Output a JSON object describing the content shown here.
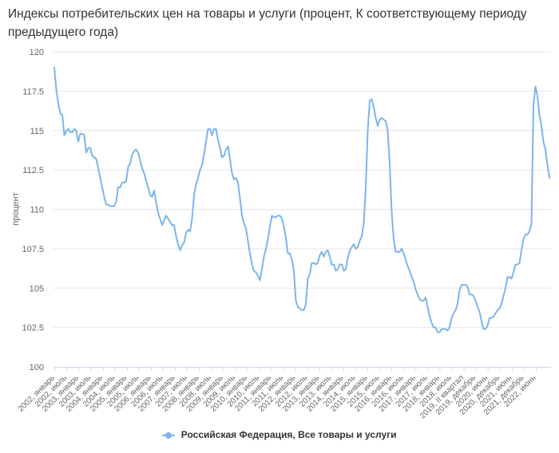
{
  "title": "Индексы потребительских цен на товары и услуги (процент, К соответствующему периоду предыдущего года)",
  "chart_data": {
    "type": "line",
    "title": "Индексы потребительских цен на товары и услуги (процент, К соответствующему периоду предыдущего года)",
    "ylabel": "процент",
    "xlabel": "",
    "ylim": [
      100,
      120
    ],
    "yticks": [
      100,
      102.5,
      105,
      107.5,
      110,
      112.5,
      115,
      117.5,
      120
    ],
    "ytick_labels": [
      "100",
      "102.5",
      "105",
      "107.5",
      "110",
      "112.5",
      "115",
      "117.5",
      "120"
    ],
    "xtick_labels": [
      "2002, январь",
      "2002, июль",
      "2003, январь",
      "2003, июль",
      "2004, январь",
      "2004, июль",
      "2005, январь",
      "2005, июль",
      "2006, январь",
      "2006, июль",
      "2007, январь",
      "2007, июль",
      "2008, январь",
      "2008, июль",
      "2009, январь",
      "2009, июль",
      "2010, январь",
      "2010, июль",
      "2011, январь",
      "2011, июль",
      "2012, январь",
      "2012, июль",
      "2013, январь",
      "2013, июль",
      "2014, январь",
      "2014, июль",
      "2015, январь",
      "2015, июль",
      "2016, январь",
      "2016, июль",
      "2017, январь",
      "2017, июль",
      "2018, январь",
      "2018, июль",
      "2019, II квартал",
      "2019, декабрь",
      "2020, июнь",
      "2020, декабрь",
      "2021, июнь",
      "2021, декабрь",
      "2022, июнь"
    ],
    "grid": true,
    "legend_position": "bottom",
    "color": "#7cb5ec",
    "series": [
      {
        "name": "Российская Федерация, Все товары и услуги",
        "values": [
          119.0,
          117.6,
          116.7,
          116.1,
          116.0,
          114.7,
          115.0,
          115.1,
          114.9,
          114.9,
          115.1,
          115.0,
          114.3,
          114.8,
          114.8,
          114.7,
          113.6,
          113.9,
          113.9,
          113.4,
          113.3,
          113.2,
          112.6,
          112.0,
          111.4,
          110.8,
          110.3,
          110.3,
          110.2,
          110.2,
          110.2,
          110.5,
          111.4,
          111.4,
          111.7,
          111.7,
          111.8,
          112.7,
          112.9,
          113.5,
          113.7,
          113.8,
          113.6,
          113.1,
          112.6,
          112.3,
          111.8,
          111.4,
          110.9,
          110.8,
          111.2,
          110.4,
          109.8,
          109.4,
          109.0,
          109.3,
          109.6,
          109.4,
          109.2,
          109.0,
          109.0,
          108.3,
          107.8,
          107.4,
          107.7,
          107.9,
          108.5,
          108.7,
          108.6,
          109.4,
          110.9,
          111.6,
          112.0,
          112.5,
          112.8,
          113.5,
          114.3,
          115.1,
          115.1,
          114.7,
          115.1,
          115.1,
          114.4,
          113.9,
          113.3,
          113.4,
          113.8,
          114.0,
          113.2,
          112.3,
          111.9,
          112.0,
          111.7,
          110.7,
          109.6,
          109.1,
          108.8,
          108.0,
          107.2,
          106.5,
          106.1,
          106.0,
          105.8,
          105.5,
          106.2,
          107.0,
          107.5,
          108.1,
          108.9,
          109.6,
          109.5,
          109.5,
          109.6,
          109.6,
          109.4,
          108.9,
          108.2,
          107.2,
          107.2,
          106.8,
          106.1,
          104.2,
          103.8,
          103.7,
          103.6,
          103.6,
          104.0,
          105.6,
          105.9,
          106.6,
          106.6,
          106.5,
          106.6,
          107.1,
          107.3,
          107.0,
          107.3,
          107.4,
          107.0,
          106.5,
          106.5,
          106.1,
          106.2,
          106.5,
          106.5,
          106.1,
          106.2,
          106.9,
          107.4,
          107.6,
          107.8,
          107.5,
          107.6,
          108.0,
          108.3,
          109.1,
          111.4,
          115.0,
          116.9,
          117.0,
          116.5,
          115.8,
          115.3,
          115.7,
          115.8,
          115.7,
          115.6,
          115.0,
          112.9,
          109.8,
          108.1,
          107.3,
          107.3,
          107.3,
          107.5,
          107.2,
          106.8,
          106.4,
          106.1,
          105.7,
          105.4,
          104.9,
          104.6,
          104.3,
          104.2,
          104.2,
          104.4,
          103.8,
          103.2,
          102.8,
          102.5,
          102.5,
          102.2,
          102.2,
          102.4,
          102.4,
          102.4,
          102.3,
          102.5,
          103.1,
          103.4,
          103.6,
          104.0,
          104.9,
          105.2,
          105.2,
          105.2,
          105.1,
          104.6,
          104.6,
          104.5,
          104.2,
          103.8,
          103.5,
          102.9,
          102.4,
          102.4,
          102.6,
          103.1,
          103.1,
          103.2,
          103.4,
          103.6,
          103.7,
          104.0,
          104.5,
          105.0,
          105.7,
          105.7,
          105.6,
          106.0,
          106.5,
          106.5,
          106.6,
          107.4,
          108.1,
          108.4,
          108.4,
          108.6,
          109.1,
          116.6,
          117.8,
          117.2,
          116.0,
          115.3,
          114.3,
          113.8,
          112.8,
          112.0
        ]
      }
    ]
  }
}
